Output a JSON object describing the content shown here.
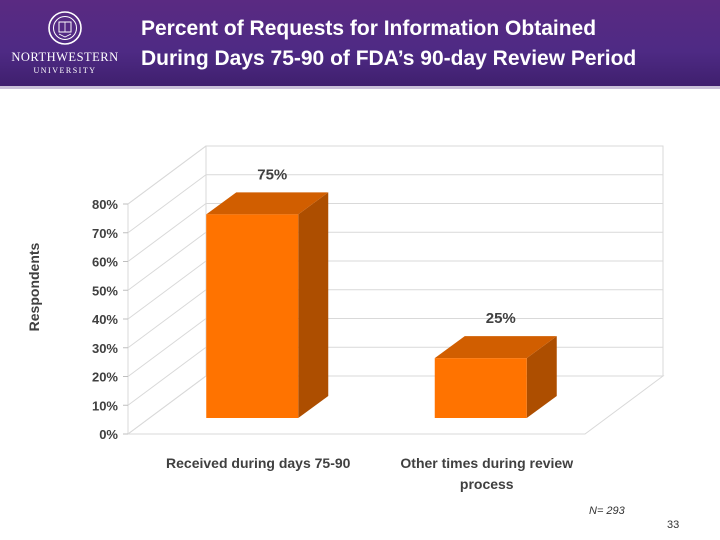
{
  "header": {
    "title_line1": "Percent of Requests for Information Obtained",
    "title_line2": "During Days 75-90 of FDA’s 90-day Review Period",
    "logo_name": "NORTHWESTERN",
    "logo_sub": "UNIVERSITY",
    "bg_color": "#4e2a84"
  },
  "chart_data": {
    "type": "bar",
    "title": "",
    "ylabel": "Respondents",
    "xlabel": "",
    "categories": [
      "Received during days 75-90",
      "Other times during review process"
    ],
    "category_lines": [
      [
        "Received during days 75-90"
      ],
      [
        "Other times during review",
        "process"
      ]
    ],
    "values": [
      75,
      25
    ],
    "data_labels": [
      "75%",
      "25%"
    ],
    "y_ticks": [
      "0%",
      "10%",
      "20%",
      "30%",
      "40%",
      "50%",
      "60%",
      "70%",
      "80%"
    ],
    "ylim": [
      0,
      80
    ],
    "grid": true,
    "bar_color": "#ff7300"
  },
  "footer": {
    "n_label": "N= 293",
    "page_number": "33"
  }
}
